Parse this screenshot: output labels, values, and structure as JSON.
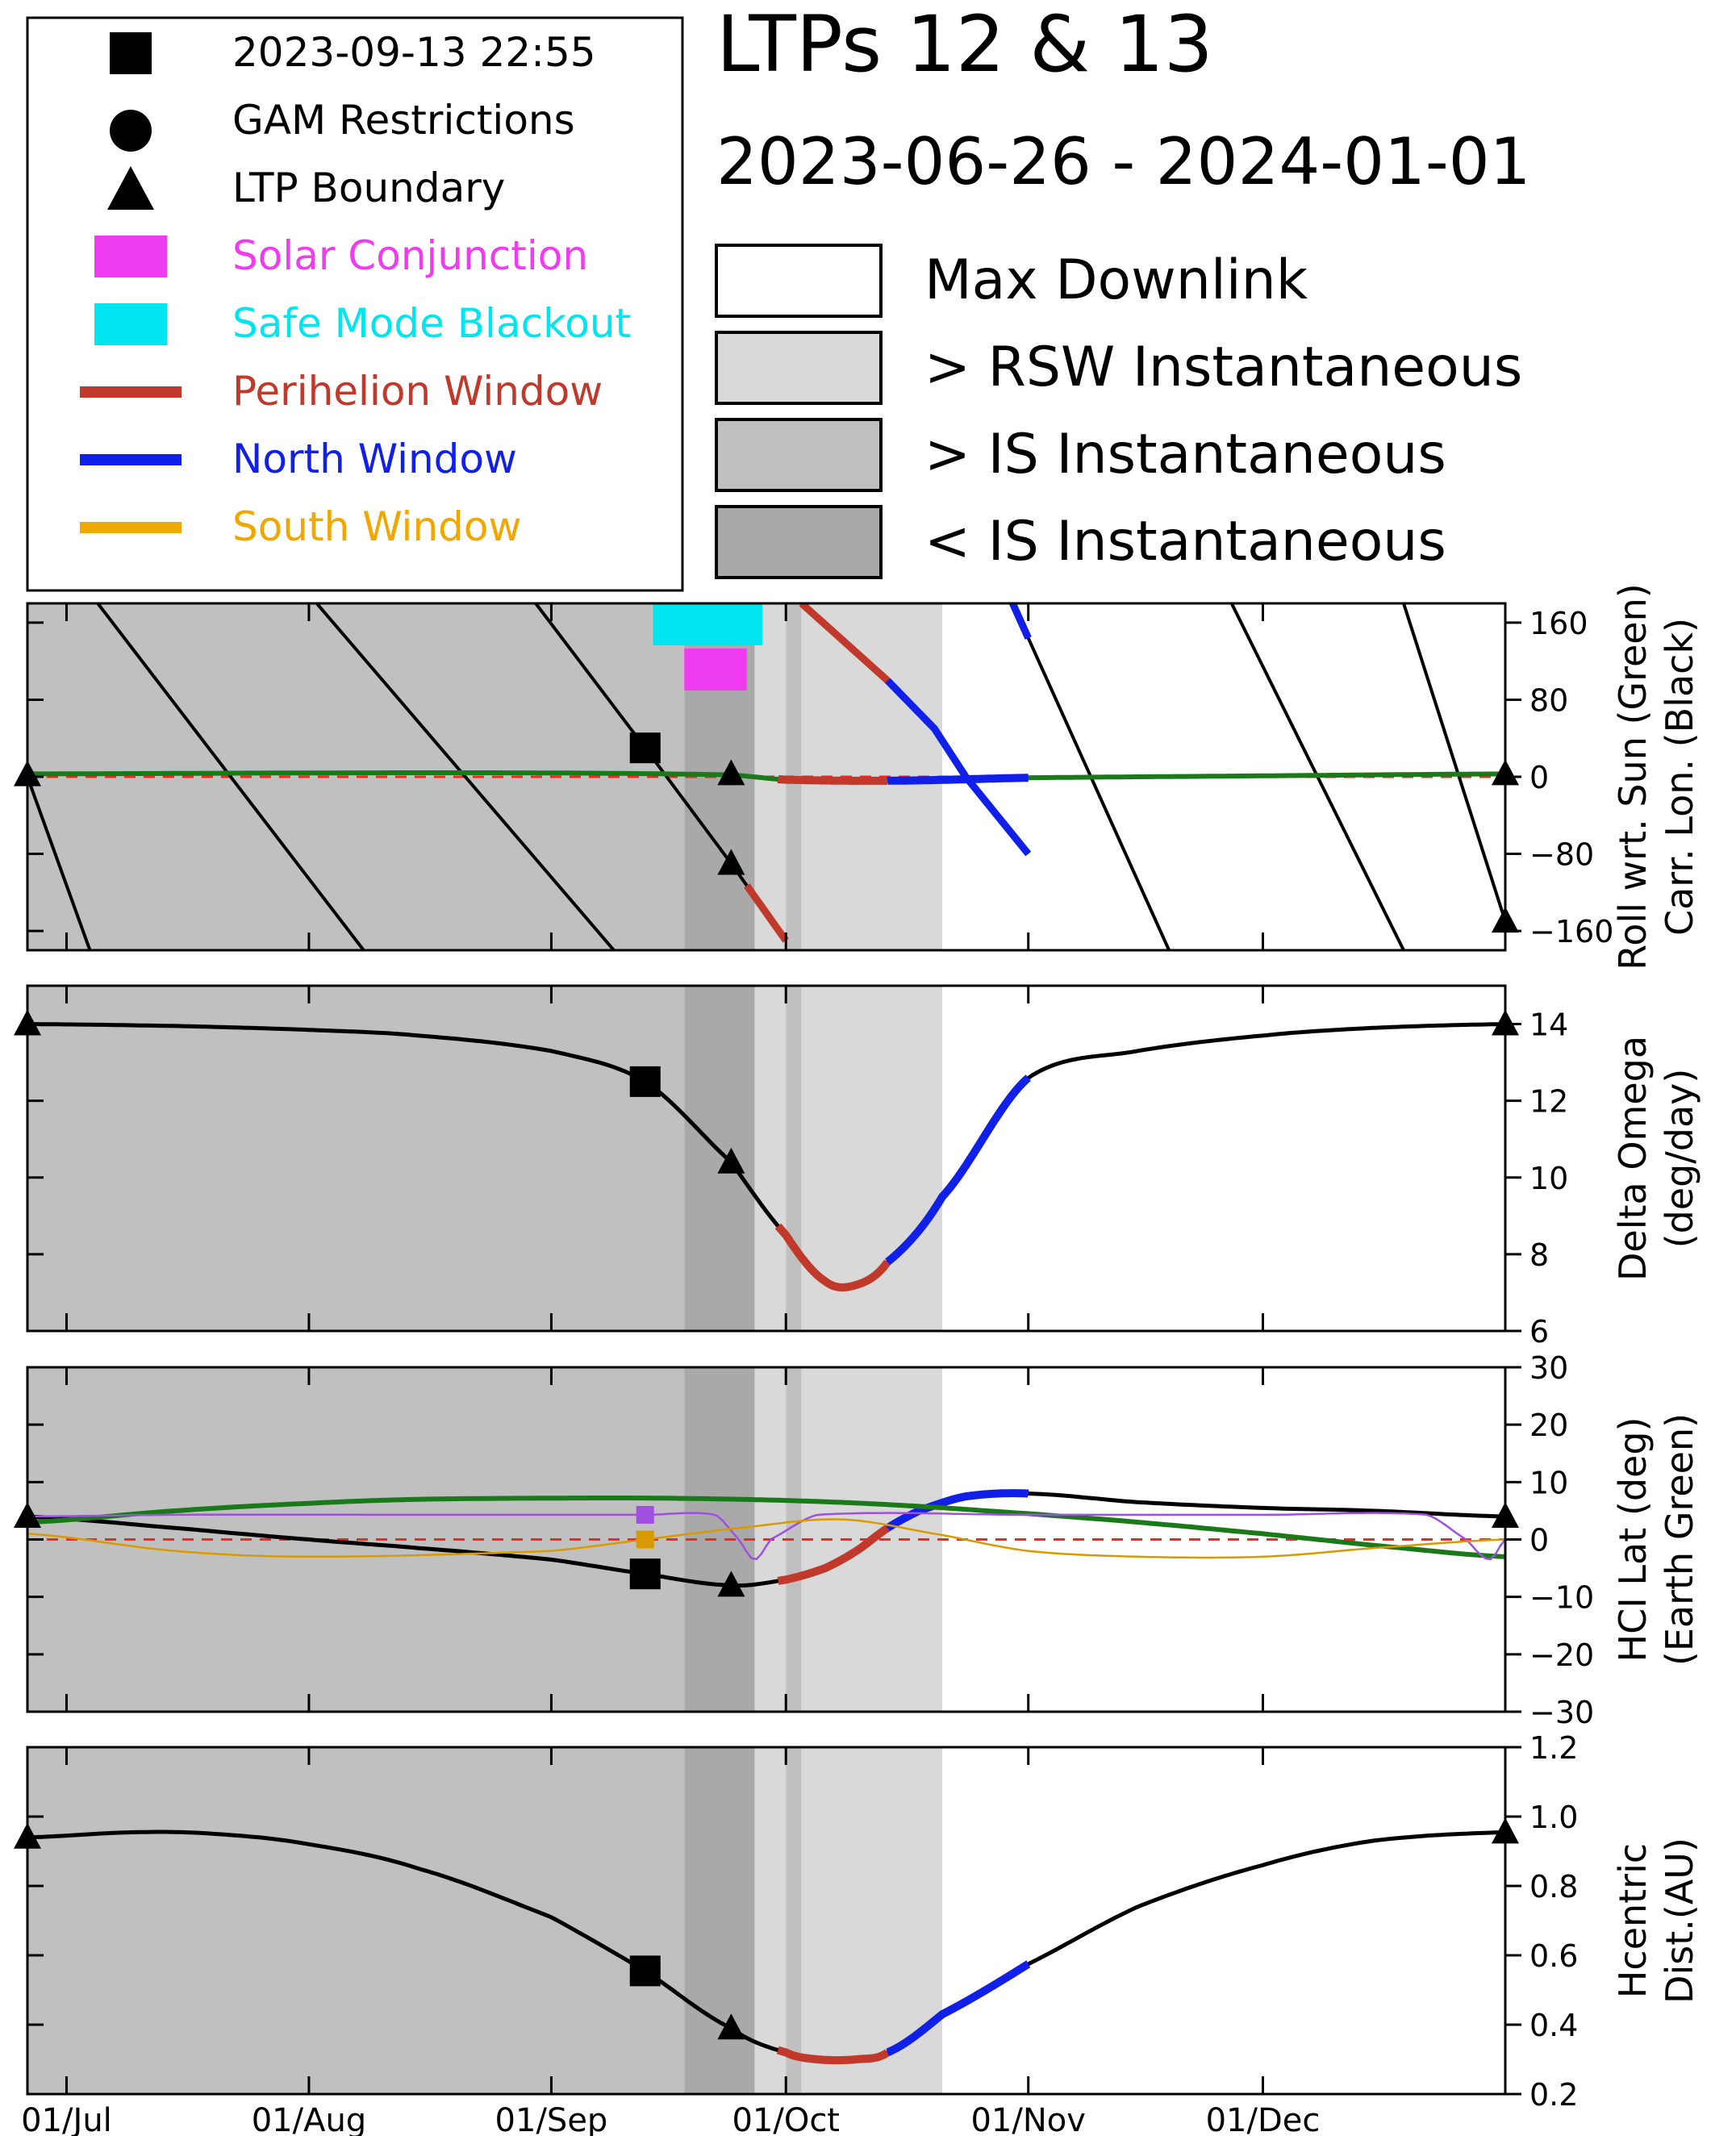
{
  "title": "LTPs 12 & 13",
  "subtitle": "2023-06-26 - 2024-01-01",
  "marker_legend": [
    {
      "label": "2023-09-13 22:55",
      "symbol": "square",
      "color": "#000000"
    },
    {
      "label": "GAM Restrictions",
      "symbol": "circle",
      "color": "#000000"
    },
    {
      "label": "LTP Boundary",
      "symbol": "triangle",
      "color": "#000000"
    },
    {
      "label": "Solar Conjunction",
      "symbol": "block",
      "color": "#f03cf0"
    },
    {
      "label": "Safe Mode Blackout",
      "symbol": "block",
      "color": "#00e5f0"
    },
    {
      "label": "Perihelion Window",
      "symbol": "line",
      "color": "#c0392b"
    },
    {
      "label": "North Window",
      "symbol": "line",
      "color": "#1020e8"
    },
    {
      "label": "South Window",
      "symbol": "line",
      "color": "#f0a800"
    }
  ],
  "shading_legend": [
    {
      "label": "Max Downlink",
      "color": "#ffffff"
    },
    {
      "label": "> RSW Instantaneous",
      "color": "#d9d9d9"
    },
    {
      "label": "> IS Instantaneous",
      "color": "#c0c0c0"
    },
    {
      "label": "< IS Instantaneous",
      "color": "#a9a9a9"
    }
  ],
  "colors": {
    "background_shade": "#c0c0c0",
    "light_shade": "#d9d9d9",
    "dark_shade": "#a9a9a9",
    "perihelion": "#c0392b",
    "north": "#1020e8",
    "south": "#d99a00",
    "roll": "#1a7a1a",
    "earth": "#1a7a1a",
    "solar_conjunction": "#f03cf0",
    "safe_mode": "#00e5f0",
    "zero_line": "#ff2020",
    "orbiter_lat_purple": "#a050e0",
    "orbiter_lat_orange": "#d99a00"
  },
  "chart_data": {
    "type": "line",
    "x_start": "2023-06-26",
    "x_end": "2024-01-01",
    "x_tick_labels": [
      "01/Jul",
      "01/Aug",
      "01/Sep",
      "01/Oct",
      "01/Nov",
      "01/Dec"
    ],
    "x_tick_dates": [
      "2023-07-01",
      "2023-08-01",
      "2023-09-01",
      "2023-10-01",
      "2023-11-01",
      "2023-12-01"
    ],
    "shading": [
      {
        "start": "2023-06-26",
        "end": "2023-09-18",
        "level": "> IS Instantaneous"
      },
      {
        "start": "2023-09-18",
        "end": "2023-09-27",
        "level": "< IS Instantaneous"
      },
      {
        "start": "2023-09-27",
        "end": "2023-10-01",
        "level": "> RSW Instantaneous"
      },
      {
        "start": "2023-10-01",
        "end": "2023-10-03",
        "level": "> IS Instantaneous"
      },
      {
        "start": "2023-10-03",
        "end": "2023-10-21",
        "level": "> RSW Instantaneous"
      },
      {
        "start": "2023-10-21",
        "end": "2024-01-01",
        "level": "Max Downlink"
      }
    ],
    "safe_mode_blackout": {
      "start": "2023-09-14",
      "end": "2023-09-28"
    },
    "solar_conjunction": {
      "start": "2023-09-18",
      "end": "2023-09-26"
    },
    "windows": {
      "perihelion": {
        "start": "2023-09-30",
        "end": "2023-10-14"
      },
      "north": {
        "start": "2023-10-14",
        "end": "2023-11-01"
      }
    },
    "markers": {
      "square_date": "2023-09-13",
      "ltp_boundaries": [
        "2023-06-26",
        "2023-09-24",
        "2024-01-01"
      ]
    },
    "panels": [
      {
        "id": "roll",
        "ylabel": [
          "Roll wrt. Sun (Green)",
          "Carr. Lon. (Black)"
        ],
        "ylim": [
          -180,
          180
        ],
        "ticks": [
          160,
          80,
          0,
          -80,
          -160
        ],
        "tick_labels": [
          "160",
          "80",
          "0",
          "−80",
          "−160"
        ],
        "series": [
          {
            "key": "roll_green",
            "x": [
              "2023-06-26",
              "2023-08-01",
              "2023-09-01",
              "2023-09-24",
              "2023-10-01",
              "2023-10-15",
              "2023-11-01",
              "2023-12-01",
              "2024-01-01"
            ],
            "values": [
              3,
              4,
              4,
              2,
              -3,
              -4,
              -1,
              1,
              3
            ]
          }
        ],
        "carrington_lines": [
          [
            [
              "2023-06-17",
              180
            ],
            [
              "2023-06-26",
              0
            ],
            [
              "2023-07-04",
              -180
            ]
          ],
          [
            [
              "2023-07-05",
              180
            ],
            [
              "2023-08-08",
              -180
            ]
          ],
          [
            [
              "2023-08-02",
              180
            ],
            [
              "2023-09-09",
              -180
            ]
          ],
          [
            [
              "2023-08-30",
              180
            ],
            [
              "2023-09-13",
              30
            ],
            [
              "2023-09-24",
              -90
            ],
            [
              "2023-10-01",
              -170
            ]
          ],
          [
            [
              "2023-10-03",
              180
            ],
            [
              "2023-10-14",
              100
            ],
            [
              "2023-10-20",
              50
            ],
            [
              "2023-10-24",
              0
            ],
            [
              "2023-11-01",
              -80
            ]
          ],
          [
            [
              "2023-10-30",
              180
            ],
            [
              "2023-11-19",
              -180
            ]
          ],
          [
            [
              "2023-11-27",
              180
            ],
            [
              "2023-12-19",
              -180
            ]
          ],
          [
            [
              "2023-12-19",
              180
            ],
            [
              "2024-01-01",
              -150
            ]
          ]
        ],
        "markers": {
          "square": [
            [
              "2023-09-13",
              30
            ]
          ],
          "triangle": [
            [
              "2023-06-26",
              2
            ],
            [
              "2023-09-24",
              3
            ],
            [
              "2023-09-24",
              -90
            ],
            [
              "2024-01-01",
              3
            ],
            [
              "2024-01-01",
              -150
            ]
          ]
        }
      },
      {
        "id": "delta_omega",
        "ylabel": [
          "Delta Omega",
          "(deg/day)"
        ],
        "ylim": [
          6,
          15
        ],
        "ticks": [
          14,
          12,
          10,
          8,
          6
        ],
        "tick_labels": [
          "14",
          "12",
          "10",
          "8",
          "6"
        ],
        "series": [
          {
            "key": "delta_omega",
            "x": [
              "2023-06-26",
              "2023-07-15",
              "2023-08-01",
              "2023-08-15",
              "2023-09-01",
              "2023-09-13",
              "2023-09-24",
              "2023-10-01",
              "2023-10-06",
              "2023-10-10",
              "2023-10-14",
              "2023-10-21",
              "2023-11-01",
              "2023-11-15",
              "2023-12-01",
              "2023-12-15",
              "2024-01-01"
            ],
            "values": [
              14.0,
              13.95,
              13.85,
              13.7,
              13.3,
              12.5,
              10.4,
              8.5,
              7.3,
              7.2,
              7.8,
              9.5,
              12.6,
              13.3,
              13.7,
              13.9,
              14.0
            ]
          }
        ],
        "markers": {
          "square": [
            [
              "2023-09-13",
              12.5
            ]
          ],
          "triangle": [
            [
              "2023-06-26",
              14.0
            ],
            [
              "2023-09-24",
              10.4
            ],
            [
              "2024-01-01",
              14.0
            ]
          ]
        }
      },
      {
        "id": "lat",
        "ylabel": [
          "HCI Lat (deg)",
          "(Earth Green)"
        ],
        "ylim": [
          -30,
          30
        ],
        "ticks": [
          30,
          20,
          10,
          0,
          -10,
          -20,
          -30
        ],
        "tick_labels": [
          "30",
          "20",
          "10",
          "0",
          "−10",
          "−20",
          "−30"
        ],
        "series": [
          {
            "key": "lat_black",
            "x": [
              "2023-06-26",
              "2023-07-15",
              "2023-08-01",
              "2023-08-15",
              "2023-09-01",
              "2023-09-13",
              "2023-09-24",
              "2023-10-01",
              "2023-10-06",
              "2023-10-10",
              "2023-10-14",
              "2023-10-18",
              "2023-10-24",
              "2023-11-01",
              "2023-11-15",
              "2023-12-01",
              "2023-12-15",
              "2024-01-01"
            ],
            "values": [
              4.0,
              2.0,
              0.0,
              -1.5,
              -3.5,
              -6.0,
              -8.0,
              -7.0,
              -5.0,
              -2.0,
              2.0,
              5.0,
              7.5,
              8.0,
              6.5,
              5.5,
              5.0,
              4.0
            ]
          },
          {
            "key": "earth_green",
            "x": [
              "2023-06-26",
              "2023-07-15",
              "2023-08-01",
              "2023-08-15",
              "2023-09-01",
              "2023-09-15",
              "2023-10-01",
              "2023-10-15",
              "2023-11-01",
              "2023-11-15",
              "2023-12-01",
              "2023-12-15",
              "2024-01-01"
            ],
            "values": [
              3.0,
              5.0,
              6.3,
              7.0,
              7.2,
              7.2,
              6.8,
              6.0,
              4.5,
              3.0,
              1.0,
              -1.0,
              -3.0
            ]
          },
          {
            "key": "purple_thin",
            "x": [
              "2023-06-26",
              "2023-07-15",
              "2023-08-15",
              "2023-09-13",
              "2023-09-22",
              "2023-09-25",
              "2023-09-27",
              "2023-09-29",
              "2023-10-05",
              "2023-11-01",
              "2023-12-01",
              "2023-12-22",
              "2023-12-27",
              "2023-12-30",
              "2024-01-01"
            ],
            "values": [
              4.0,
              4.3,
              4.3,
              4.3,
              4.3,
              0.0,
              -3.5,
              0.0,
              4.3,
              4.3,
              4.3,
              4.3,
              0.0,
              -3.5,
              0.0
            ]
          },
          {
            "key": "orange_thin",
            "x": [
              "2023-06-26",
              "2023-07-15",
              "2023-08-01",
              "2023-09-01",
              "2023-09-13",
              "2023-09-25",
              "2023-10-08",
              "2023-10-20",
              "2023-11-01",
              "2023-11-15",
              "2023-12-01",
              "2023-12-15",
              "2024-01-01"
            ],
            "values": [
              1.0,
              -2.0,
              -3.0,
              -2.0,
              0.0,
              2.0,
              3.5,
              1.0,
              -2.0,
              -3.0,
              -3.0,
              -1.5,
              0.0
            ]
          }
        ],
        "markers": {
          "square": [
            [
              "2023-09-13",
              -6.0
            ]
          ],
          "triangle": [
            [
              "2023-06-26",
              4.0
            ],
            [
              "2023-09-24",
              -8.0
            ],
            [
              "2024-01-01",
              4.0
            ]
          ],
          "small_squares": [
            [
              "2023-09-13",
              4.3,
              "#a050e0"
            ],
            [
              "2023-09-13",
              0.0,
              "#d99a00"
            ]
          ]
        }
      },
      {
        "id": "dist",
        "ylabel": [
          "Hcentric",
          "Dist.(AU)"
        ],
        "ylim": [
          0.2,
          1.2
        ],
        "ticks": [
          1.2,
          1.0,
          0.8,
          0.6,
          0.4,
          0.2
        ],
        "tick_labels": [
          "1.2",
          "1.0",
          "0.8",
          "0.6",
          "0.4",
          "0.2"
        ],
        "series": [
          {
            "key": "dist",
            "x": [
              "2023-06-26",
              "2023-07-10",
              "2023-07-20",
              "2023-08-01",
              "2023-08-15",
              "2023-09-01",
              "2023-09-13",
              "2023-09-24",
              "2023-10-01",
              "2023-10-05",
              "2023-10-10",
              "2023-10-14",
              "2023-10-21",
              "2023-11-01",
              "2023-11-15",
              "2023-12-01",
              "2023-12-15",
              "2024-01-01"
            ],
            "values": [
              0.94,
              0.955,
              0.95,
              0.92,
              0.85,
              0.71,
              0.555,
              0.39,
              0.32,
              0.3,
              0.3,
              0.32,
              0.43,
              0.575,
              0.74,
              0.86,
              0.93,
              0.955
            ]
          }
        ],
        "markers": {
          "square": [
            [
              "2023-09-13",
              0.555
            ]
          ],
          "triangle": [
            [
              "2023-06-26",
              0.94
            ],
            [
              "2023-09-24",
              0.39
            ],
            [
              "2024-01-01",
              0.955
            ]
          ]
        }
      }
    ]
  }
}
